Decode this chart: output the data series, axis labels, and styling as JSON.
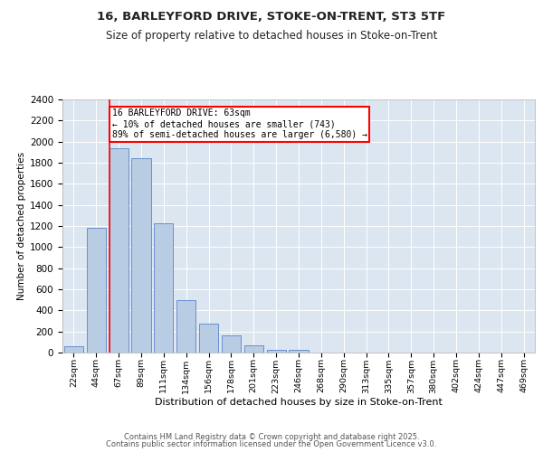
{
  "title1": "16, BARLEYFORD DRIVE, STOKE-ON-TRENT, ST3 5TF",
  "title2": "Size of property relative to detached houses in Stoke-on-Trent",
  "xlabel": "Distribution of detached houses by size in Stoke-on-Trent",
  "ylabel": "Number of detached properties",
  "bins": [
    "22sqm",
    "44sqm",
    "67sqm",
    "89sqm",
    "111sqm",
    "134sqm",
    "156sqm",
    "178sqm",
    "201sqm",
    "223sqm",
    "246sqm",
    "268sqm",
    "290sqm",
    "313sqm",
    "335sqm",
    "357sqm",
    "380sqm",
    "402sqm",
    "424sqm",
    "447sqm",
    "469sqm"
  ],
  "bar_values": [
    60,
    1180,
    1940,
    1840,
    1230,
    500,
    275,
    165,
    70,
    30,
    30,
    0,
    0,
    0,
    0,
    0,
    0,
    0,
    0,
    0,
    0
  ],
  "bar_color": "#b8cce4",
  "bar_edge_color": "#4472c4",
  "vline_x_idx": 1.575,
  "annotation_text": "16 BARLEYFORD DRIVE: 63sqm\n← 10% of detached houses are smaller (743)\n89% of semi-detached houses are larger (6,580) →",
  "annotation_box_color": "white",
  "annotation_box_edge": "red",
  "vline_color": "red",
  "ylim": [
    0,
    2400
  ],
  "yticks": [
    0,
    200,
    400,
    600,
    800,
    1000,
    1200,
    1400,
    1600,
    1800,
    2000,
    2200,
    2400
  ],
  "footer1": "Contains HM Land Registry data © Crown copyright and database right 2025.",
  "footer2": "Contains public sector information licensed under the Open Government Licence v3.0.",
  "plot_bg_color": "#dce6f1",
  "fig_bg_color": "#ffffff",
  "grid_color": "#ffffff"
}
